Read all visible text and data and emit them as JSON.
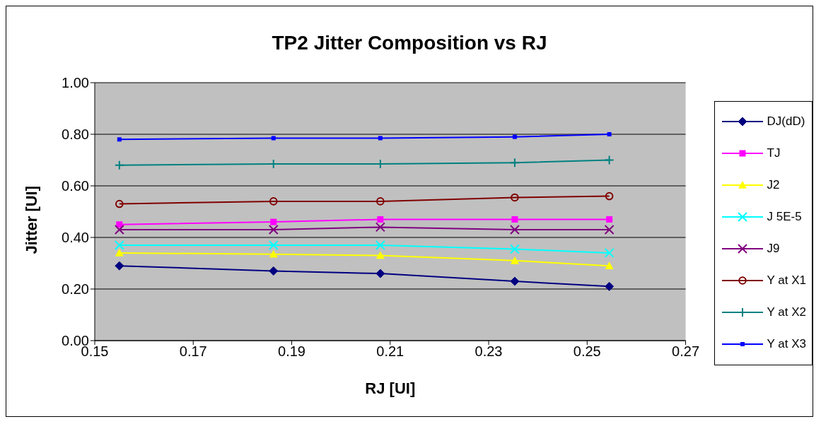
{
  "chart_data": {
    "type": "line",
    "title": "TP2 Jitter Composition vs RJ",
    "xlabel": "RJ [UI]",
    "ylabel": "Jitter [UI]",
    "x": [
      0.155,
      0.1863,
      0.208,
      0.2353,
      0.2545
    ],
    "series": [
      {
        "name": "DJ(dD)",
        "color": "#000080",
        "marker": "diamond",
        "values": [
          0.29,
          0.27,
          0.26,
          0.23,
          0.21
        ]
      },
      {
        "name": "TJ",
        "color": "#ff00ff",
        "marker": "square",
        "values": [
          0.45,
          0.46,
          0.47,
          0.47,
          0.47
        ]
      },
      {
        "name": "J2",
        "color": "#ffff00",
        "marker": "triangle",
        "values": [
          0.34,
          0.335,
          0.33,
          0.31,
          0.29
        ]
      },
      {
        "name": "J 5E-5",
        "color": "#00ffff",
        "marker": "cross",
        "values": [
          0.37,
          0.37,
          0.37,
          0.355,
          0.34
        ]
      },
      {
        "name": "J9",
        "color": "#800080",
        "marker": "cross",
        "values": [
          0.43,
          0.43,
          0.44,
          0.43,
          0.43
        ]
      },
      {
        "name": "Y at X1",
        "color": "#800000",
        "marker": "circle",
        "values": [
          0.53,
          0.54,
          0.54,
          0.555,
          0.56
        ]
      },
      {
        "name": "Y at X2",
        "color": "#008080",
        "marker": "plus",
        "values": [
          0.68,
          0.685,
          0.685,
          0.69,
          0.7
        ]
      },
      {
        "name": "Y at X3",
        "color": "#0000ff",
        "marker": "square",
        "values": [
          0.78,
          0.785,
          0.785,
          0.79,
          0.8
        ]
      }
    ],
    "xlim": [
      0.15,
      0.27
    ],
    "xticks": [
      0.15,
      0.17,
      0.19,
      0.21,
      0.23,
      0.25,
      0.27
    ],
    "ylim": [
      0,
      1
    ],
    "yticks": [
      {
        "value": 0,
        "label": "0.00"
      },
      {
        "value": 0.2,
        "label": "0.20"
      },
      {
        "value": 0.4,
        "label": "0.40"
      },
      {
        "value": 0.6,
        "label": "0.60"
      },
      {
        "value": 0.8,
        "label": "0.80"
      },
      {
        "value": 1,
        "label": "1.00"
      }
    ],
    "grid": "y",
    "legend": "right",
    "line_style": "solid"
  }
}
